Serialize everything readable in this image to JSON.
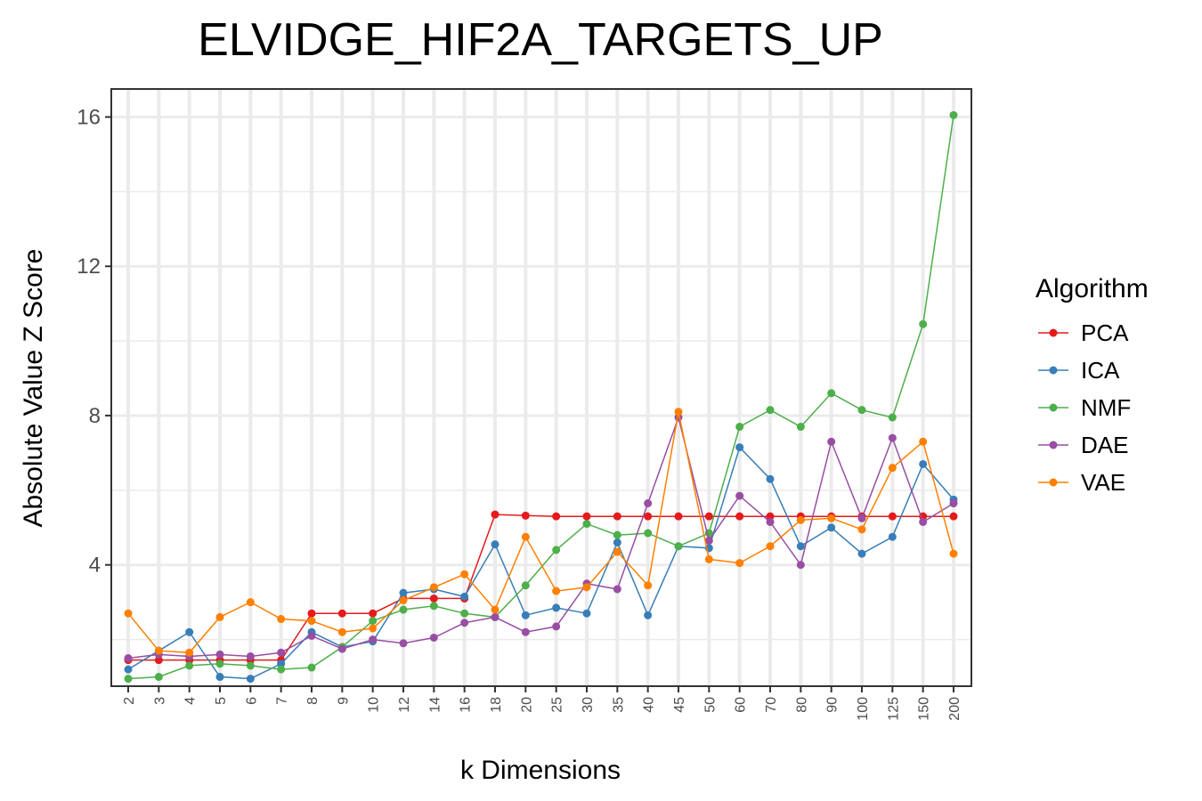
{
  "chart_data": {
    "type": "line",
    "title": "ELVIDGE_HIF2A_TARGETS_UP",
    "xlabel": "k Dimensions",
    "ylabel": "Absolute Value Z Score",
    "categories": [
      "2",
      "3",
      "4",
      "5",
      "6",
      "7",
      "8",
      "9",
      "10",
      "12",
      "14",
      "16",
      "18",
      "20",
      "25",
      "30",
      "35",
      "40",
      "45",
      "50",
      "60",
      "70",
      "80",
      "90",
      "100",
      "125",
      "150",
      "200"
    ],
    "ylim": [
      0.75,
      16.75
    ],
    "yticks": [
      4,
      8,
      12,
      16
    ],
    "grid": true,
    "legend": {
      "title": "Algorithm",
      "position": "right"
    },
    "series": [
      {
        "name": "PCA",
        "color": "#e41a1c",
        "values": [
          1.45,
          1.45,
          1.45,
          1.45,
          1.45,
          1.45,
          2.7,
          2.7,
          2.7,
          3.1,
          3.1,
          3.1,
          5.35,
          5.32,
          5.3,
          5.3,
          5.3,
          5.3,
          5.3,
          5.3,
          5.3,
          5.3,
          5.3,
          5.3,
          5.3,
          5.3,
          5.3,
          5.3
        ]
      },
      {
        "name": "ICA",
        "color": "#377eb8",
        "values": [
          1.2,
          1.7,
          2.2,
          1.0,
          0.95,
          1.35,
          2.2,
          1.8,
          1.95,
          3.25,
          3.35,
          3.15,
          4.55,
          2.65,
          2.85,
          2.7,
          4.6,
          2.65,
          4.5,
          4.45,
          7.15,
          6.3,
          4.5,
          5.0,
          4.3,
          4.75,
          6.7,
          5.75
        ]
      },
      {
        "name": "NMF",
        "color": "#4daf4a",
        "values": [
          0.95,
          1.0,
          1.3,
          1.35,
          1.3,
          1.2,
          1.25,
          1.8,
          2.5,
          2.8,
          2.9,
          2.7,
          2.6,
          3.45,
          4.4,
          5.1,
          4.8,
          4.85,
          4.5,
          4.85,
          7.7,
          8.15,
          7.7,
          8.6,
          8.15,
          7.95,
          10.45,
          16.05
        ]
      },
      {
        "name": "DAE",
        "color": "#984ea3",
        "values": [
          1.5,
          1.6,
          1.55,
          1.6,
          1.55,
          1.65,
          2.1,
          1.75,
          2.0,
          1.9,
          2.05,
          2.45,
          2.6,
          2.2,
          2.35,
          3.5,
          3.35,
          5.65,
          7.95,
          4.65,
          5.85,
          5.15,
          4.0,
          7.3,
          5.25,
          7.4,
          5.15,
          5.65
        ]
      },
      {
        "name": "VAE",
        "color": "#ff7f00",
        "values": [
          2.7,
          1.7,
          1.65,
          2.6,
          3.0,
          2.55,
          2.5,
          2.2,
          2.3,
          3.05,
          3.4,
          3.75,
          2.8,
          4.75,
          3.3,
          3.4,
          4.35,
          3.45,
          8.1,
          4.15,
          4.05,
          4.5,
          5.2,
          5.25,
          4.95,
          6.6,
          7.3,
          4.3
        ]
      }
    ]
  }
}
